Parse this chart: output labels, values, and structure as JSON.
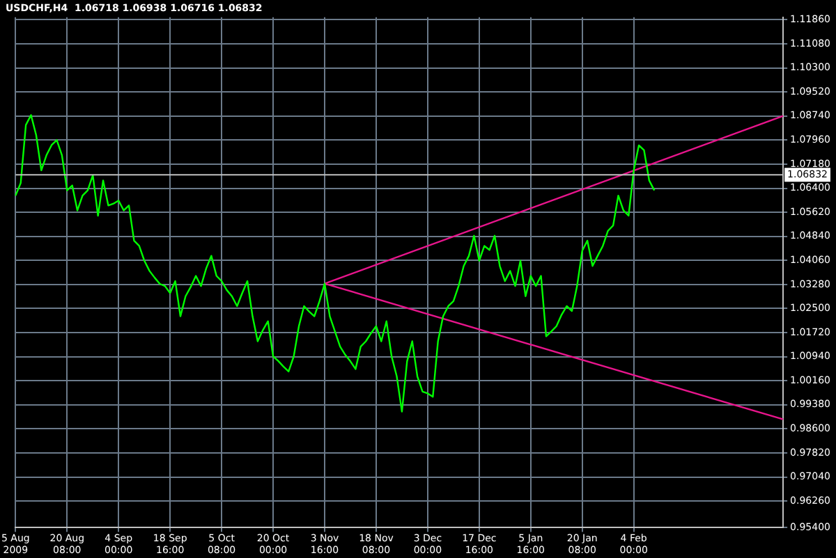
{
  "chart_data": {
    "type": "line",
    "title": "USDCHF,H4  1.06718 1.06938 1.06716 1.06832",
    "categories": [
      "5 Aug 2009",
      null,
      null,
      null,
      null,
      null,
      null,
      null,
      null,
      null,
      "20 Aug 08:00",
      null,
      null,
      null,
      null,
      null,
      null,
      null,
      null,
      null,
      "4 Sep 00:00",
      null,
      null,
      null,
      null,
      null,
      null,
      null,
      null,
      null,
      "18 Sep 16:00",
      null,
      null,
      null,
      null,
      null,
      null,
      null,
      null,
      null,
      "5 Oct 08:00",
      null,
      null,
      null,
      null,
      null,
      null,
      null,
      null,
      null,
      "20 Oct 00:00",
      null,
      null,
      null,
      null,
      null,
      null,
      null,
      null,
      null,
      "3 Nov 16:00",
      null,
      null,
      null,
      null,
      null,
      null,
      null,
      null,
      null,
      "18 Nov 08:00",
      null,
      null,
      null,
      null,
      null,
      null,
      null,
      null,
      null,
      "3 Dec 00:00",
      null,
      null,
      null,
      null,
      null,
      null,
      null,
      null,
      null,
      "17 Dec 16:00",
      null,
      null,
      null,
      null,
      null,
      null,
      null,
      null,
      null,
      "5 Jan 16:00",
      null,
      null,
      null,
      null,
      null,
      null,
      null,
      null,
      null,
      "20 Jan 08:00",
      null,
      null,
      null,
      null,
      null,
      null,
      null,
      null,
      null,
      "4 Feb 00:00",
      null,
      null,
      null,
      null,
      null,
      null,
      null,
      null,
      null,
      null,
      null,
      null,
      null,
      null,
      null,
      null,
      null,
      null,
      null,
      null,
      null,
      null,
      null,
      null,
      null,
      null,
      null,
      null,
      null
    ],
    "ylim": [
      0.954,
      1.1194
    ],
    "yticks": [
      {
        "value": 0.954,
        "label": "0.95400"
      },
      {
        "value": 0.9626,
        "label": "0.96260"
      },
      {
        "value": 0.9704,
        "label": "0.97040"
      },
      {
        "value": 0.9782,
        "label": "0.97820"
      },
      {
        "value": 0.986,
        "label": "0.98600"
      },
      {
        "value": 0.9938,
        "label": "0.99380"
      },
      {
        "value": 1.0016,
        "label": "1.00160"
      },
      {
        "value": 1.0094,
        "label": "1.00940"
      },
      {
        "value": 1.0172,
        "label": "1.01720"
      },
      {
        "value": 1.025,
        "label": "1.02500"
      },
      {
        "value": 1.0328,
        "label": "1.03280"
      },
      {
        "value": 1.0406,
        "label": "1.04060"
      },
      {
        "value": 1.0484,
        "label": "1.04840"
      },
      {
        "value": 1.0562,
        "label": "1.05620"
      },
      {
        "value": 1.064,
        "label": "1.06400"
      },
      {
        "value": 1.0718,
        "label": "1.07180"
      },
      {
        "value": 1.0796,
        "label": "1.07960"
      },
      {
        "value": 1.0874,
        "label": "1.08740"
      },
      {
        "value": 1.0952,
        "label": "1.09520"
      },
      {
        "value": 1.103,
        "label": "1.10300"
      },
      {
        "value": 1.1108,
        "label": "1.11080"
      },
      {
        "value": 1.1186,
        "label": "1.11860"
      }
    ],
    "grid": true,
    "legend": false,
    "marker": "none",
    "line_style": "solid",
    "ref_lines": [
      {
        "axis": "y",
        "value": 1.06832,
        "label": "1.06832",
        "color": "#c0c0c0"
      }
    ],
    "series": [
      {
        "color": "#00ff00",
        "values": [
          1.0616,
          1.0657,
          1.0845,
          1.0877,
          1.0812,
          1.0698,
          1.0747,
          1.078,
          1.0796,
          1.0747,
          1.0633,
          1.0649,
          1.0568,
          1.0616,
          1.0633,
          1.0682,
          1.0551,
          1.0665,
          1.0584,
          1.059,
          1.06,
          1.0568,
          1.0584,
          1.047,
          1.0453,
          1.0405,
          1.0372,
          1.035,
          1.033,
          1.0323,
          1.03,
          1.0339,
          1.0225,
          1.029,
          1.032,
          1.0356,
          1.0323,
          1.038,
          1.0421,
          1.0356,
          1.0339,
          1.031,
          1.029,
          1.0258,
          1.03,
          1.0339,
          1.0225,
          1.0144,
          1.018,
          1.0209,
          1.0095,
          1.008,
          1.0062,
          1.0046,
          1.0095,
          1.0193,
          1.0258,
          1.024,
          1.0225,
          1.0274,
          1.0331,
          1.0225,
          1.0176,
          1.0127,
          1.01,
          1.0079,
          1.0054,
          1.0127,
          1.0144,
          1.017,
          1.0193,
          1.0144,
          1.0209,
          1.0095,
          1.003,
          0.9916,
          1.0079,
          1.0144,
          1.003,
          0.9981,
          0.9975,
          0.9964,
          1.0144,
          1.0225,
          1.0258,
          1.0274,
          1.0323,
          1.0388,
          1.0421,
          1.0486,
          1.0405,
          1.0453,
          1.044,
          1.0486,
          1.0388,
          1.0339,
          1.0372,
          1.0323,
          1.0405,
          1.029,
          1.0356,
          1.0323,
          1.0356,
          1.016,
          1.0176,
          1.0193,
          1.023,
          1.0258,
          1.0242,
          1.0323,
          1.0437,
          1.047,
          1.0388,
          1.0421,
          1.0453,
          1.0502,
          1.0519,
          1.0616,
          1.0568,
          1.0551,
          1.0698,
          1.0779,
          1.0763,
          1.0665,
          1.0633,
          null,
          null,
          null,
          null,
          null,
          null,
          null,
          null,
          null,
          null,
          null,
          null,
          null,
          null,
          null,
          null,
          null,
          null,
          null,
          null,
          null,
          null,
          null,
          null,
          null
        ]
      },
      {
        "color": "#e8158c",
        "values": [
          null,
          null,
          null,
          null,
          null,
          null,
          null,
          null,
          null,
          null,
          null,
          null,
          null,
          null,
          null,
          null,
          null,
          null,
          null,
          null,
          null,
          null,
          null,
          null,
          null,
          null,
          null,
          null,
          null,
          null,
          null,
          null,
          null,
          null,
          null,
          null,
          null,
          null,
          null,
          null,
          null,
          null,
          null,
          null,
          null,
          null,
          null,
          null,
          null,
          null,
          null,
          null,
          null,
          null,
          null,
          null,
          null,
          null,
          null,
          null,
          1.0331,
          null,
          null,
          null,
          null,
          null,
          null,
          null,
          null,
          null,
          null,
          null,
          null,
          null,
          null,
          null,
          null,
          null,
          null,
          null,
          null,
          null,
          null,
          null,
          null,
          null,
          null,
          null,
          null,
          null,
          null,
          null,
          null,
          null,
          null,
          null,
          null,
          null,
          null,
          null,
          null,
          null,
          null,
          null,
          null,
          null,
          null,
          null,
          null,
          null,
          null,
          null,
          null,
          null,
          null,
          null,
          null,
          null,
          null,
          null,
          null,
          null,
          null,
          null,
          null,
          null,
          null,
          null,
          null,
          null,
          null,
          null,
          null,
          null,
          null,
          null,
          null,
          null,
          null,
          null,
          null,
          null,
          null,
          null,
          null,
          null,
          null,
          null,
          null,
          1.0874
        ]
      },
      {
        "color": "#e8158c",
        "values": [
          null,
          null,
          null,
          null,
          null,
          null,
          null,
          null,
          null,
          null,
          null,
          null,
          null,
          null,
          null,
          null,
          null,
          null,
          null,
          null,
          null,
          null,
          null,
          null,
          null,
          null,
          null,
          null,
          null,
          null,
          null,
          null,
          null,
          null,
          null,
          null,
          null,
          null,
          null,
          null,
          null,
          null,
          null,
          null,
          null,
          null,
          null,
          null,
          null,
          null,
          null,
          null,
          null,
          null,
          null,
          null,
          null,
          null,
          null,
          null,
          1.0331,
          null,
          null,
          null,
          null,
          null,
          null,
          null,
          null,
          null,
          null,
          null,
          null,
          null,
          null,
          null,
          null,
          null,
          null,
          null,
          null,
          null,
          null,
          null,
          null,
          null,
          null,
          null,
          null,
          null,
          null,
          null,
          null,
          null,
          null,
          null,
          null,
          null,
          null,
          null,
          null,
          null,
          null,
          null,
          null,
          null,
          null,
          null,
          null,
          null,
          null,
          null,
          null,
          null,
          null,
          null,
          null,
          null,
          null,
          null,
          null,
          null,
          null,
          null,
          null,
          null,
          null,
          null,
          null,
          null,
          null,
          null,
          null,
          null,
          null,
          null,
          null,
          null,
          null,
          null,
          null,
          null,
          null,
          null,
          null,
          null,
          null,
          null,
          null,
          0.9891
        ]
      }
    ]
  }
}
